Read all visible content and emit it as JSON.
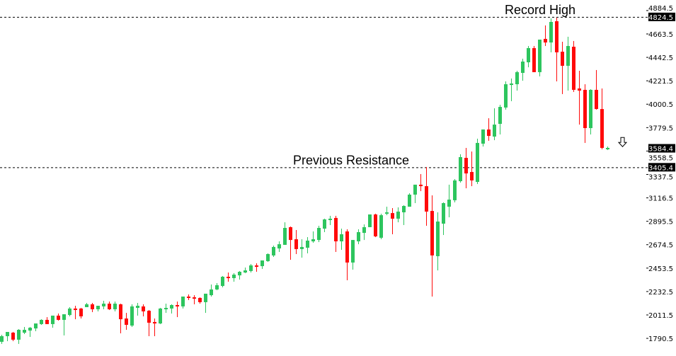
{
  "chart_data": {
    "type": "candlestick",
    "title": "",
    "xlabel": "",
    "ylabel": "",
    "ylim": [
      1738,
      4884.5
    ],
    "grid": false,
    "colors": {
      "up": "#2dc55e",
      "down": "#ff0a0a",
      "level_line": "#000000",
      "background": "#ffffff"
    },
    "ohlc_format": [
      "open",
      "high",
      "low",
      "close"
    ],
    "candles": [
      [
        1758,
        1824,
        1738,
        1811
      ],
      [
        1811,
        1851,
        1764,
        1851
      ],
      [
        1844,
        1851,
        1764,
        1778
      ],
      [
        1778,
        1878,
        1738,
        1871
      ],
      [
        1844,
        1898,
        1831,
        1871
      ],
      [
        1864,
        1898,
        1804,
        1891
      ],
      [
        1884,
        1931,
        1858,
        1931
      ],
      [
        1925,
        1971,
        1918,
        1965
      ],
      [
        1965,
        1991,
        1925,
        1925
      ],
      [
        1925,
        2005,
        1891,
        2005
      ],
      [
        2005,
        2025,
        1958,
        1965
      ],
      [
        1965,
        2018,
        1818,
        2018
      ],
      [
        2011,
        2085,
        1998,
        2072
      ],
      [
        2072,
        2098,
        1971,
        2058
      ],
      [
        2072,
        2078,
        1978,
        1998
      ],
      [
        2085,
        2125,
        2085,
        2112
      ],
      [
        2112,
        2125,
        2038,
        2065
      ],
      [
        2065,
        2098,
        2045,
        2098
      ],
      [
        2092,
        2145,
        2065,
        2118
      ],
      [
        2118,
        2138,
        2058,
        2065
      ],
      [
        2065,
        2138,
        2045,
        2118
      ],
      [
        2112,
        2118,
        1838,
        1971
      ],
      [
        1978,
        2031,
        1871,
        1918
      ],
      [
        1911,
        2112,
        1898,
        2092
      ],
      [
        2078,
        2125,
        2005,
        2098
      ],
      [
        2092,
        2112,
        1998,
        2045
      ],
      [
        2051,
        2058,
        1811,
        1938
      ],
      [
        1945,
        1978,
        1811,
        1931
      ],
      [
        1931,
        2078,
        1925,
        2072
      ],
      [
        2065,
        2118,
        2031,
        2078
      ],
      [
        2072,
        2112,
        2025,
        2105
      ],
      [
        2105,
        2138,
        1991,
        2098
      ],
      [
        2092,
        2185,
        2072,
        2185
      ],
      [
        2185,
        2205,
        2152,
        2172
      ],
      [
        2178,
        2198,
        2112,
        2165
      ],
      [
        2172,
        2178,
        2118,
        2132
      ],
      [
        2132,
        2212,
        2031,
        2212
      ],
      [
        2198,
        2299,
        2185,
        2252
      ],
      [
        2252,
        2312,
        2245,
        2292
      ],
      [
        2285,
        2379,
        2272,
        2372
      ],
      [
        2372,
        2412,
        2325,
        2365
      ],
      [
        2359,
        2406,
        2325,
        2392
      ],
      [
        2385,
        2426,
        2345,
        2419
      ],
      [
        2412,
        2459,
        2406,
        2432
      ],
      [
        2426,
        2492,
        2412,
        2479
      ],
      [
        2479,
        2499,
        2419,
        2472
      ],
      [
        2472,
        2526,
        2446,
        2526
      ],
      [
        2519,
        2593,
        2512,
        2586
      ],
      [
        2573,
        2666,
        2559,
        2653
      ],
      [
        2639,
        2706,
        2606,
        2679
      ],
      [
        2673,
        2886,
        2673,
        2833
      ],
      [
        2840,
        2846,
        2532,
        2719
      ],
      [
        2726,
        2813,
        2586,
        2633
      ],
      [
        2633,
        2726,
        2552,
        2653
      ],
      [
        2646,
        2746,
        2593,
        2713
      ],
      [
        2706,
        2800,
        2693,
        2726
      ],
      [
        2719,
        2853,
        2699,
        2833
      ],
      [
        2826,
        2920,
        2793,
        2913
      ],
      [
        2907,
        2947,
        2860,
        2920
      ],
      [
        2927,
        2947,
        2606,
        2706
      ],
      [
        2706,
        2826,
        2626,
        2773
      ],
      [
        2800,
        2820,
        2339,
        2506
      ],
      [
        2506,
        2719,
        2439,
        2719
      ],
      [
        2706,
        2820,
        2679,
        2793
      ],
      [
        2786,
        2866,
        2719,
        2840
      ],
      [
        2840,
        2960,
        2840,
        2960
      ],
      [
        2960,
        2967,
        2746,
        2753
      ],
      [
        2740,
        2967,
        2726,
        2953
      ],
      [
        2967,
        3033,
        2953,
        2980
      ],
      [
        2973,
        3020,
        2773,
        2920
      ],
      [
        2920,
        3027,
        2886,
        2987
      ],
      [
        2980,
        3047,
        2860,
        3040
      ],
      [
        3033,
        3160,
        3033,
        3147
      ],
      [
        3147,
        3241,
        3067,
        3241
      ],
      [
        3241,
        3341,
        3180,
        3227
      ],
      [
        3227,
        3408,
        2853,
        2987
      ],
      [
        2993,
        3140,
        2185,
        2573
      ],
      [
        2566,
        2980,
        2432,
        2893
      ],
      [
        2873,
        3074,
        2766,
        3067
      ],
      [
        3033,
        3241,
        2933,
        3100
      ],
      [
        3094,
        3294,
        3074,
        3281
      ],
      [
        3274,
        3528,
        3261,
        3501
      ],
      [
        3494,
        3588,
        3207,
        3347
      ],
      [
        3361,
        3554,
        3227,
        3281
      ],
      [
        3267,
        3675,
        3247,
        3635
      ],
      [
        3628,
        3762,
        3601,
        3762
      ],
      [
        3762,
        3868,
        3655,
        3701
      ],
      [
        3695,
        3962,
        3661,
        3808
      ],
      [
        3815,
        3995,
        3715,
        3975
      ],
      [
        3969,
        4216,
        3949,
        4189
      ],
      [
        4182,
        4243,
        4029,
        4196
      ],
      [
        4189,
        4316,
        4129,
        4303
      ],
      [
        4296,
        4430,
        4222,
        4403
      ],
      [
        4396,
        4550,
        4349,
        4530
      ],
      [
        4530,
        4550,
        4303,
        4303
      ],
      [
        4303,
        4610,
        4263,
        4610
      ],
      [
        4617,
        4744,
        4550,
        4583
      ],
      [
        4583,
        4810,
        4490,
        4777
      ],
      [
        4784,
        4817,
        4216,
        4490
      ],
      [
        4496,
        4590,
        4096,
        4363
      ],
      [
        4363,
        4637,
        4129,
        4550
      ],
      [
        4543,
        4597,
        4116,
        4136
      ],
      [
        4149,
        4316,
        3808,
        4129
      ],
      [
        4136,
        4189,
        3635,
        3775
      ],
      [
        3775,
        4142,
        3715,
        4136
      ],
      [
        4136,
        4323,
        3949,
        3955
      ],
      [
        3955,
        4149,
        3575,
        3588
      ],
      [
        3581,
        3601,
        3568,
        3588
      ]
    ],
    "y_ticks": [
      {
        "value": 4884.5,
        "label": "4884.5"
      },
      {
        "value": 4663.5,
        "label": "4663.5"
      },
      {
        "value": 4442.5,
        "label": "4442.5"
      },
      {
        "value": 4221.5,
        "label": "4221.5"
      },
      {
        "value": 4000.5,
        "label": "4000.5"
      },
      {
        "value": 3779.5,
        "label": "3779.5"
      },
      {
        "value": 3558.5,
        "label": "3558.5"
      },
      {
        "value": 3337.5,
        "label": "3337.5"
      },
      {
        "value": 3116.5,
        "label": "3116.5"
      },
      {
        "value": 2895.5,
        "label": "2895.5"
      },
      {
        "value": 2674.5,
        "label": "2674.5"
      },
      {
        "value": 2453.5,
        "label": "2453.5"
      },
      {
        "value": 2232.5,
        "label": "2232.5"
      },
      {
        "value": 2011.5,
        "label": "2011.5"
      },
      {
        "value": 1790.5,
        "label": "1790.5"
      }
    ],
    "highlighted_levels": [
      {
        "value": 4824.5,
        "label": "4824.5",
        "dashed_line": true
      },
      {
        "value": 3584.4,
        "label": "3584.4",
        "dashed_line": false
      },
      {
        "value": 3405.4,
        "label": "3405.4",
        "dashed_line": true
      }
    ],
    "annotations": [
      {
        "text": "Record High",
        "value": 4824.5,
        "near_candle": 97
      },
      {
        "text": "Previous Resistance",
        "value": 3405.4,
        "near_candle": 68
      }
    ],
    "signal": {
      "icon": "down-arrow-icon",
      "value": 3640
    }
  }
}
